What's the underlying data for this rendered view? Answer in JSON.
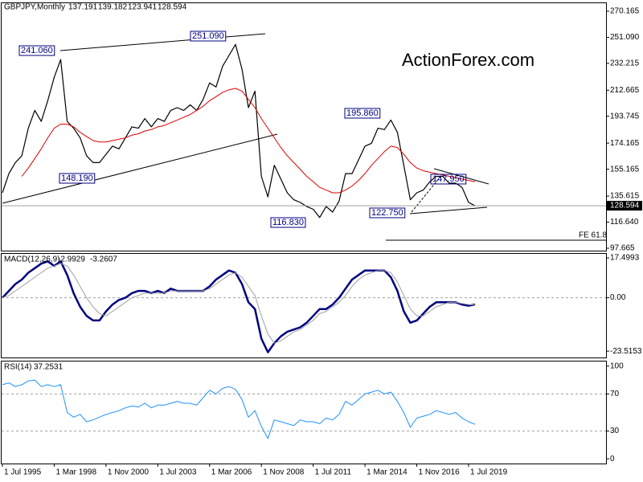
{
  "chart_data": [
    {
      "type": "line",
      "title": "GBPJPY,Monthly",
      "last_bar": {
        "open": 137.191,
        "high": 139.182,
        "low": 123.941,
        "close": 128.594
      },
      "watermark": "ActionForex.com",
      "annotations": [
        "241.060",
        "251.090",
        "148.190",
        "116.830",
        "195.860",
        "122.750",
        "147.950"
      ],
      "fe_line": {
        "label": "FE 61.8",
        "value": 103.5
      },
      "ylim": [
        95.92,
        275.97
      ],
      "yticks": [
        270.165,
        {
          "value": 251.09,
          "label": "251.090"
        },
        {
          "value": 232.215,
          "label": "232.215"
        },
        {
          "value": 212.665,
          "label": "212.665"
        },
        {
          "value": 193.745,
          "label": "193.745"
        },
        {
          "value": 174.165,
          "label": "174.165"
        },
        {
          "value": 155.165,
          "label": "155.165"
        },
        {
          "value": 135.615,
          "label": "135.615"
        },
        {
          "value": 116.64,
          "label": "116.640"
        },
        97.665
      ],
      "series": [
        {
          "color": "#000000",
          "width": 1.2,
          "values": [
            138,
            152,
            160,
            165,
            185,
            198,
            190,
            205,
            222,
            235,
            190,
            185,
            178,
            165,
            160,
            160,
            166,
            172,
            170,
            178,
            186,
            185,
            192,
            186,
            192,
            190,
            198,
            200,
            198,
            202,
            198,
            206,
            218,
            215,
            230,
            238,
            246,
            228,
            200,
            212,
            150,
            135,
            158,
            148,
            138,
            133,
            131,
            128,
            126,
            120,
            128,
            124,
            132,
            152,
            152,
            162,
            172,
            174,
            185,
            184,
            191,
            182,
            158,
            133,
            138,
            140,
            146,
            150,
            150,
            145,
            145,
            142,
            131,
            128.594
          ]
        },
        {
          "color": "#e00000",
          "width": 1,
          "values": [
            null,
            null,
            null,
            150,
            156,
            163,
            170,
            178,
            185,
            188,
            188,
            186,
            182,
            179,
            176,
            175,
            175,
            176,
            177,
            178,
            180,
            181,
            183,
            184,
            186,
            187,
            189,
            191,
            193,
            195,
            198,
            201,
            205,
            208,
            211,
            213,
            214,
            212,
            206,
            200,
            192,
            185,
            178,
            171,
            165,
            160,
            155,
            150,
            146,
            142,
            140,
            138,
            138,
            140,
            143,
            147,
            152,
            158,
            163,
            168,
            172,
            171,
            166,
            160,
            156,
            154,
            153,
            152,
            151,
            150,
            149,
            148,
            147,
            146
          ]
        }
      ]
    },
    {
      "type": "line",
      "title": "MACD(12,26,9)",
      "ylim": [
        -26.3,
        19.3
      ],
      "yticks": [
        17.4993,
        {
          "value": 0,
          "label": "0.00"
        },
        -23.5153
      ],
      "series": [
        {
          "color": "#000080",
          "width": 2.5,
          "values": [
            0,
            3,
            6,
            8,
            11,
            13,
            15,
            16,
            14,
            16,
            10,
            2,
            -4,
            -8,
            -10,
            -10,
            -6,
            -3,
            -1,
            0,
            2,
            3,
            3,
            2,
            3,
            2,
            4,
            3,
            3,
            3,
            3,
            3,
            5,
            8,
            10,
            12,
            11,
            6,
            -2,
            -5,
            -18,
            -24,
            -20,
            -17,
            -15,
            -14,
            -13,
            -11,
            -8,
            -5,
            -5,
            -3,
            0,
            4,
            8,
            10,
            12,
            12,
            12,
            12,
            9,
            3,
            -6,
            -11,
            -10,
            -7,
            -4,
            -2,
            -2,
            -2,
            -2,
            -3,
            -3.5,
            -2.9929
          ]
        },
        {
          "color": "#a0a0a0",
          "width": 1,
          "values": [
            0,
            1,
            3,
            5,
            7,
            9,
            11,
            13,
            14,
            15,
            14,
            10,
            5,
            0,
            -4,
            -7,
            -8,
            -6,
            -4,
            -2,
            0,
            1,
            2,
            2,
            2,
            2,
            3,
            3,
            3,
            3,
            3,
            3,
            4,
            6,
            8,
            10,
            11,
            9,
            5,
            1,
            -8,
            -16,
            -20,
            -19,
            -17,
            -15,
            -14,
            -12,
            -10,
            -7,
            -6,
            -4,
            -2,
            1,
            5,
            8,
            10,
            11,
            12,
            12,
            11,
            7,
            1,
            -5,
            -8,
            -8,
            -6,
            -4,
            -3,
            -2,
            -2,
            -2.5,
            -3,
            -3.2607
          ]
        }
      ]
    },
    {
      "type": "line",
      "title": "RSI(14)",
      "ylim": [
        -5,
        105
      ],
      "yticks": [
        100,
        70,
        30,
        0
      ],
      "categories": [
        "1 Jul 1995",
        null,
        null,
        null,
        null,
        null,
        null,
        null,
        "1 Mar 1998",
        null,
        null,
        null,
        null,
        null,
        null,
        null,
        "1 Nov 2000",
        null,
        null,
        null,
        null,
        null,
        null,
        null,
        "1 Jul 2003",
        null,
        null,
        null,
        null,
        null,
        null,
        null,
        "1 Mar 2006",
        null,
        null,
        null,
        null,
        null,
        null,
        null,
        "1 Nov 2008",
        null,
        null,
        null,
        null,
        null,
        null,
        null,
        "1 Jul 2011",
        null,
        null,
        null,
        null,
        null,
        null,
        null,
        "1 Mar 2014",
        null,
        null,
        null,
        null,
        null,
        null,
        null,
        "1 Nov 2016",
        null,
        null,
        null,
        null,
        null,
        null,
        null,
        "1 Jul 2019",
        null
      ],
      "series": [
        {
          "color": "#1e90ff",
          "width": 1,
          "values": [
            80,
            82,
            78,
            80,
            84,
            85,
            78,
            80,
            78,
            80,
            50,
            45,
            48,
            40,
            42,
            45,
            48,
            50,
            52,
            55,
            57,
            56,
            60,
            55,
            58,
            58,
            60,
            62,
            60,
            60,
            58,
            66,
            74,
            70,
            76,
            78,
            75,
            64,
            45,
            52,
            35,
            22,
            42,
            40,
            38,
            36,
            42,
            40,
            40,
            38,
            44,
            42,
            48,
            62,
            58,
            64,
            70,
            72,
            74,
            70,
            72,
            62,
            50,
            34,
            44,
            46,
            48,
            52,
            50,
            48,
            50,
            44,
            40,
            37.2531
          ]
        }
      ]
    }
  ]
}
